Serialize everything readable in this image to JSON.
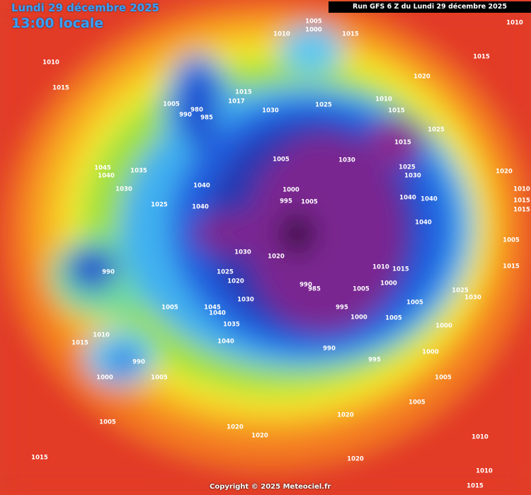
{
  "header": {
    "date": "Lundi 29 décembre 2025",
    "time": "13:00 locale",
    "run_info": "Run GFS 6 Z du Lundi 29 décembre 2025"
  },
  "copyright": "Copyright © 2025 Meteociel.fr",
  "isobar_labels": [
    "1010",
    "1005",
    "1000",
    "1015",
    "1010",
    "1010",
    "1015",
    "1015",
    "1020",
    "1005",
    "990",
    "980",
    "985",
    "1015",
    "1017",
    "1030",
    "1025",
    "1010",
    "1015",
    "1025",
    "1015",
    "1045",
    "1040",
    "1035",
    "1030",
    "1005",
    "1030",
    "1025",
    "1030",
    "1020",
    "1040",
    "1000",
    "995",
    "1005",
    "1040",
    "1040",
    "1025",
    "1040",
    "1010",
    "1015",
    "1015",
    "1040",
    "1030",
    "1020",
    "1005",
    "990",
    "1025",
    "1020",
    "1010",
    "1015",
    "1015",
    "990",
    "985",
    "1005",
    "1000",
    "1025",
    "1030",
    "1005",
    "1030",
    "1005",
    "1045",
    "1040",
    "995",
    "1000",
    "1005",
    "1035",
    "1000",
    "1010",
    "1015",
    "1040",
    "990",
    "1000",
    "995",
    "990",
    "1000",
    "1005",
    "1005",
    "1005",
    "1020",
    "1005",
    "1020",
    "1020",
    "1010",
    "1020",
    "1015",
    "1010",
    "1015"
  ]
}
